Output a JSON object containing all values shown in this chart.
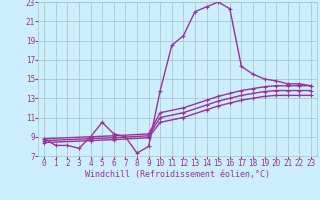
{
  "bg_color": "#cceeff",
  "grid_color": "#aacccc",
  "line_color": "#993399",
  "marker": "+",
  "markersize": 3,
  "linewidth": 1.0,
  "xlim": [
    -0.5,
    23.5
  ],
  "ylim": [
    7,
    23
  ],
  "xticks": [
    0,
    1,
    2,
    3,
    4,
    5,
    6,
    7,
    8,
    9,
    10,
    11,
    12,
    13,
    14,
    15,
    16,
    17,
    18,
    19,
    20,
    21,
    22,
    23
  ],
  "yticks": [
    7,
    9,
    11,
    13,
    15,
    17,
    19,
    21,
    23
  ],
  "xlabel": "Windchill (Refroidissement éolien,°C)",
  "xlabel_fontsize": 6,
  "tick_fontsize": 5.5,
  "series": [
    {
      "x": [
        0,
        1,
        2,
        3,
        4,
        5,
        6,
        7,
        8,
        9,
        10,
        11,
        12,
        13,
        14,
        15,
        16,
        17,
        18,
        19,
        20,
        21,
        22,
        23
      ],
      "y": [
        8.8,
        8.1,
        8.1,
        7.8,
        9.0,
        10.5,
        9.3,
        9.0,
        7.3,
        8.0,
        13.8,
        18.5,
        19.5,
        22.0,
        22.5,
        23.0,
        22.3,
        16.3,
        15.5,
        15.0,
        14.8,
        14.5,
        14.5,
        14.3
      ]
    },
    {
      "x": [
        0,
        4,
        6,
        9,
        10,
        12,
        14,
        15,
        16,
        17,
        18,
        19,
        20,
        21,
        22,
        23
      ],
      "y": [
        8.8,
        9.0,
        9.1,
        9.3,
        11.5,
        12.0,
        12.8,
        13.2,
        13.5,
        13.8,
        14.0,
        14.2,
        14.3,
        14.3,
        14.3,
        14.3
      ]
    },
    {
      "x": [
        0,
        4,
        6,
        9,
        10,
        12,
        14,
        15,
        16,
        17,
        18,
        19,
        20,
        21,
        22,
        23
      ],
      "y": [
        8.6,
        8.8,
        8.9,
        9.1,
        11.0,
        11.5,
        12.3,
        12.7,
        13.0,
        13.3,
        13.5,
        13.7,
        13.8,
        13.8,
        13.8,
        13.8
      ]
    },
    {
      "x": [
        0,
        4,
        6,
        9,
        10,
        12,
        14,
        15,
        16,
        17,
        18,
        19,
        20,
        21,
        22,
        23
      ],
      "y": [
        8.4,
        8.6,
        8.7,
        8.9,
        10.5,
        11.0,
        11.8,
        12.2,
        12.5,
        12.8,
        13.0,
        13.2,
        13.3,
        13.3,
        13.3,
        13.3
      ]
    }
  ]
}
